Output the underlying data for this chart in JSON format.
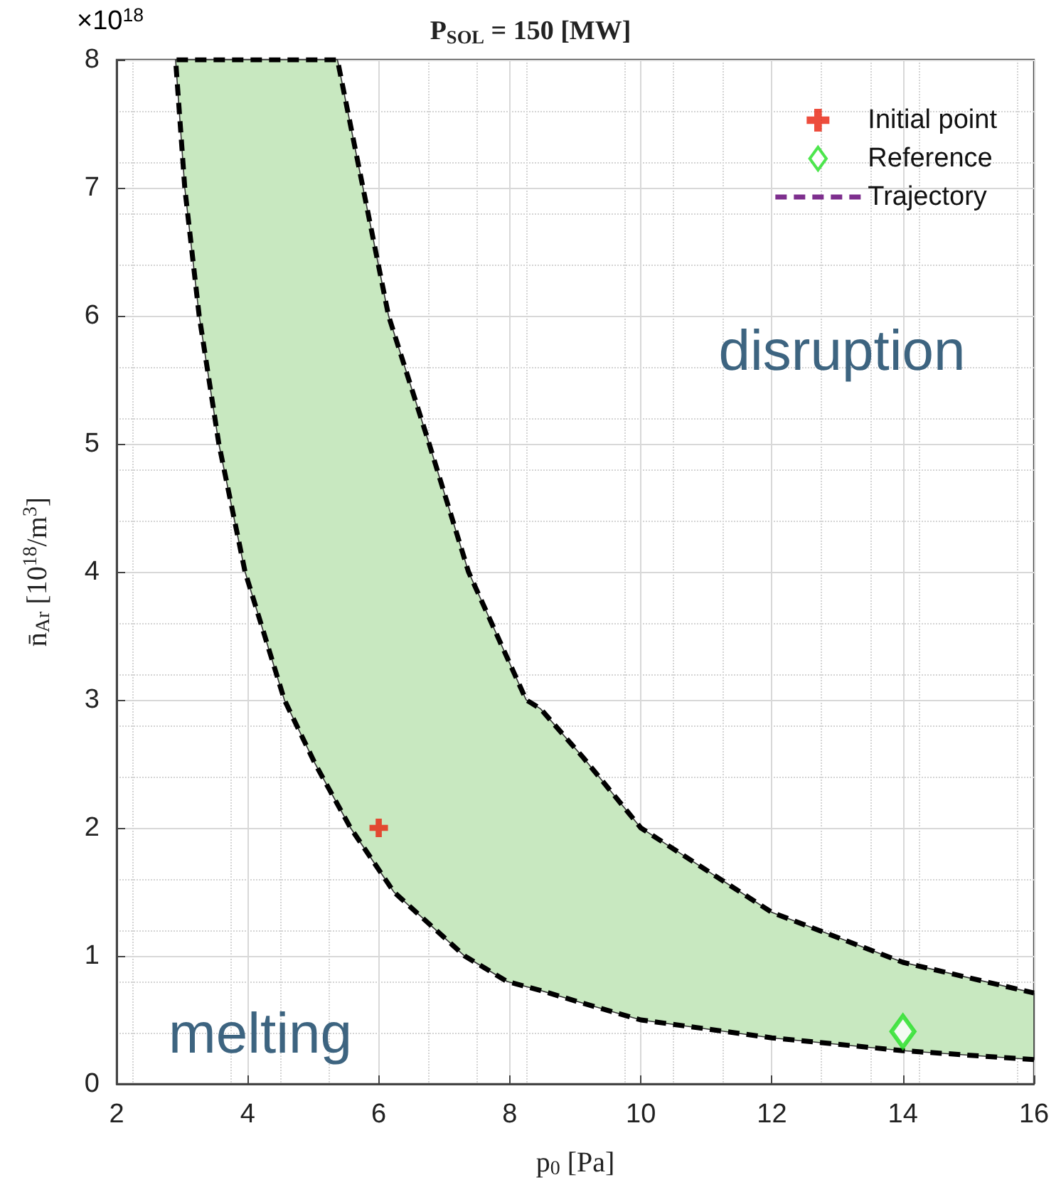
{
  "chart_data": {
    "type": "line",
    "title": "P$_{SOL}$ = 150 [MW]",
    "xlabel": "p$_{0}$ [Pa]",
    "ylabel": "n̄$_{Ar}$ [10$^{18}$/m$^{3}$]",
    "xlim": [
      2,
      16
    ],
    "ylim": [
      0,
      8
    ],
    "xticks": [
      2,
      4,
      6,
      8,
      10,
      12,
      14,
      16
    ],
    "yticks": [
      0,
      1,
      2,
      3,
      4,
      5,
      6,
      7,
      8
    ],
    "grid": true,
    "legend": "top right",
    "annotations": [
      "×10$^{18}$",
      "disruption",
      "melting"
    ],
    "series": [
      {
        "type": "area",
        "color": "#c8e8c0",
        "line_style": "dashed",
        "x": [
          16,
          14,
          12,
          10,
          9.12,
          8.47,
          7.96,
          7.31,
          6.23,
          5.57,
          5.03,
          4.56,
          3.96,
          3.56,
          3.26,
          3.04,
          2.9,
          5.37,
          5.76,
          6.15,
          6.77,
          7.37,
          8.25,
          8.47,
          9.12,
          10,
          12,
          14,
          16
        ],
        "values": [
          0.19,
          0.26,
          0.36,
          0.5,
          0.63,
          0.73,
          0.8,
          1,
          1.5,
          2,
          2.5,
          3,
          4,
          5,
          6,
          7,
          8,
          8,
          7,
          6,
          5,
          4,
          3,
          2.93,
          2.55,
          2,
          1.34,
          0.95,
          0.71
        ]
      },
      {
        "type": "scatter",
        "name": "Initial point",
        "color": "#e8200c",
        "marker": "cross",
        "x": [
          6
        ],
        "values": [
          2
        ]
      },
      {
        "type": "scatter",
        "name": "Reference",
        "color": "#22e022",
        "marker": "diamond",
        "x": [
          14
        ],
        "values": [
          0.41
        ]
      },
      {
        "name": "Trajectory",
        "color": "#7e2f8e",
        "line_style": "dashed",
        "marker": "none"
      }
    ]
  }
}
